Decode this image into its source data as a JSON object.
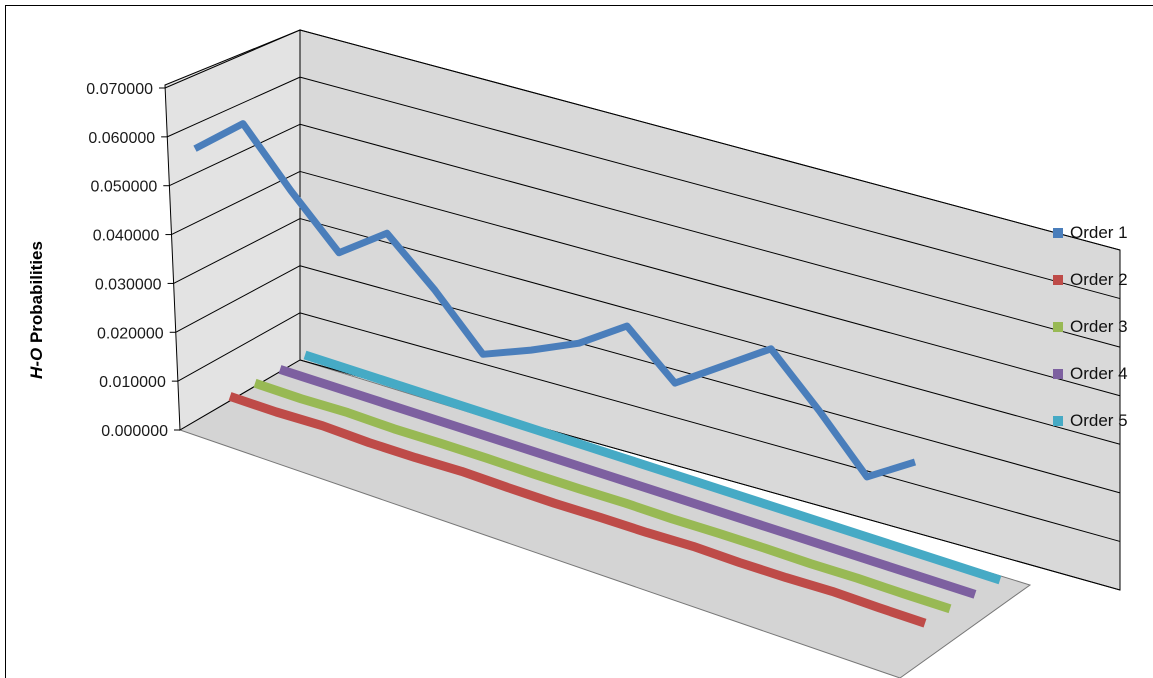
{
  "chart_data": {
    "type": "line",
    "chart_style": "3d-line",
    "ylabel_italic": "H-O",
    "ylabel_rest": " Probabilities",
    "yticks": [
      "0.000000",
      "0.010000",
      "0.020000",
      "0.030000",
      "0.040000",
      "0.050000",
      "0.060000",
      "0.070000"
    ],
    "ylim": [
      0,
      0.07
    ],
    "grid": true,
    "legend_position": "right",
    "series": [
      {
        "name": "Order 1",
        "color": "#4a7ebb",
        "values": [
          0.0535,
          0.0612,
          0.049,
          0.038,
          0.0445,
          0.0345,
          0.023,
          0.0262,
          0.03,
          0.036,
          0.026,
          0.032,
          0.038,
          0.027,
          0.015,
          0.0205
        ]
      },
      {
        "name": "Order 2",
        "color": "#be4b48",
        "values": [
          0.0006,
          0.0005,
          0.0007,
          0.0004,
          0.0004,
          0.0006,
          0.0004,
          0.0003,
          0.0004,
          0.0004,
          0.0006,
          0.0004,
          0.0004,
          0.0006,
          0.0004,
          0.0003
        ]
      },
      {
        "name": "Order 3",
        "color": "#98b954",
        "values": [
          0.0003,
          0.0002,
          0.0004,
          0.0002,
          0.0003,
          0.0003,
          0.0002,
          0.0002,
          0.0003,
          0.0002,
          0.0003,
          0.0003,
          0.0002,
          0.0003,
          0.0002,
          0.0002
        ]
      },
      {
        "name": "Order 4",
        "color": "#7d60a0",
        "values": [
          0.0001,
          0.0001,
          0.0001,
          0.0001,
          0.0001,
          0.0001,
          0.0001,
          0.0001,
          0.0001,
          0.0001,
          0.0001,
          0.0001,
          0.0001,
          0.0001,
          0.0001,
          0.0001
        ]
      },
      {
        "name": "Order 5",
        "color": "#46aac5",
        "values": [
          0.0,
          0.0,
          0.0,
          0.0,
          0.0,
          0.0,
          0.0,
          0.0,
          0.0,
          0.0,
          0.0,
          0.0,
          0.0,
          0.0,
          0.0,
          0.0
        ]
      }
    ]
  }
}
